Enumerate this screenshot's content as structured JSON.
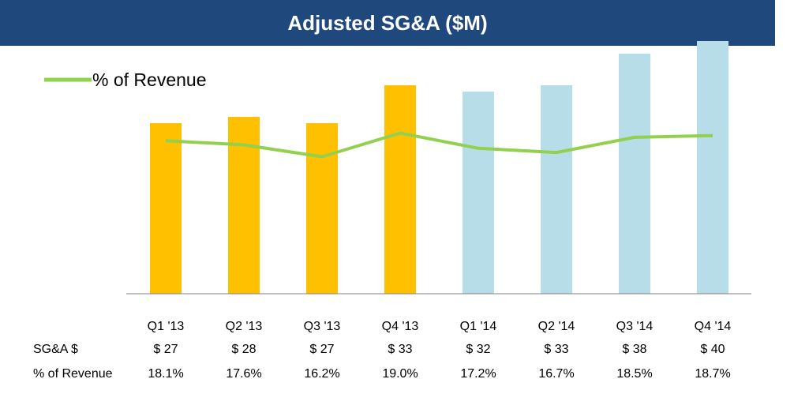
{
  "title": "Adjusted SG&A ($M)",
  "colors": {
    "title_bg": "#1F497D",
    "bar_2013": "#FFC000",
    "bar_2014": "#B7DEE8",
    "line": "#92D050",
    "axis": "#808080",
    "text": "#000000"
  },
  "legend": {
    "label": "% of Revenue",
    "position": "top-left"
  },
  "table": {
    "row_labels": [
      "SG&A $",
      "% of Revenue"
    ]
  },
  "chart_data": {
    "type": "bar",
    "categories": [
      "Q1 '13",
      "Q2 '13",
      "Q3 '13",
      "Q4 '13",
      "Q1 '14",
      "Q2 '14",
      "Q3 '14",
      "Q4 '14"
    ],
    "series": [
      {
        "values": [
          27,
          28,
          27,
          33,
          32,
          33,
          38,
          40
        ],
        "value_labels": [
          "$ 27",
          "$ 28",
          "$ 27",
          "$ 33",
          "$ 32",
          "$ 33",
          "$ 38",
          "$ 40"
        ],
        "colors_by_year": [
          "2013",
          "2013",
          "2013",
          "2013",
          "2014",
          "2014",
          "2014",
          "2014"
        ]
      },
      {
        "name": "% of Revenue",
        "type": "line",
        "values": [
          18.1,
          17.6,
          16.2,
          19.0,
          17.2,
          16.7,
          18.5,
          18.7
        ],
        "value_labels": [
          "18.1%",
          "17.6%",
          "16.2%",
          "19.0%",
          "17.2%",
          "16.7%",
          "18.5%",
          "18.7%"
        ]
      }
    ],
    "ylim": [
      0,
      41.5
    ],
    "line_ylim": [
      0,
      31
    ],
    "grid": false,
    "legend": "top-left"
  }
}
